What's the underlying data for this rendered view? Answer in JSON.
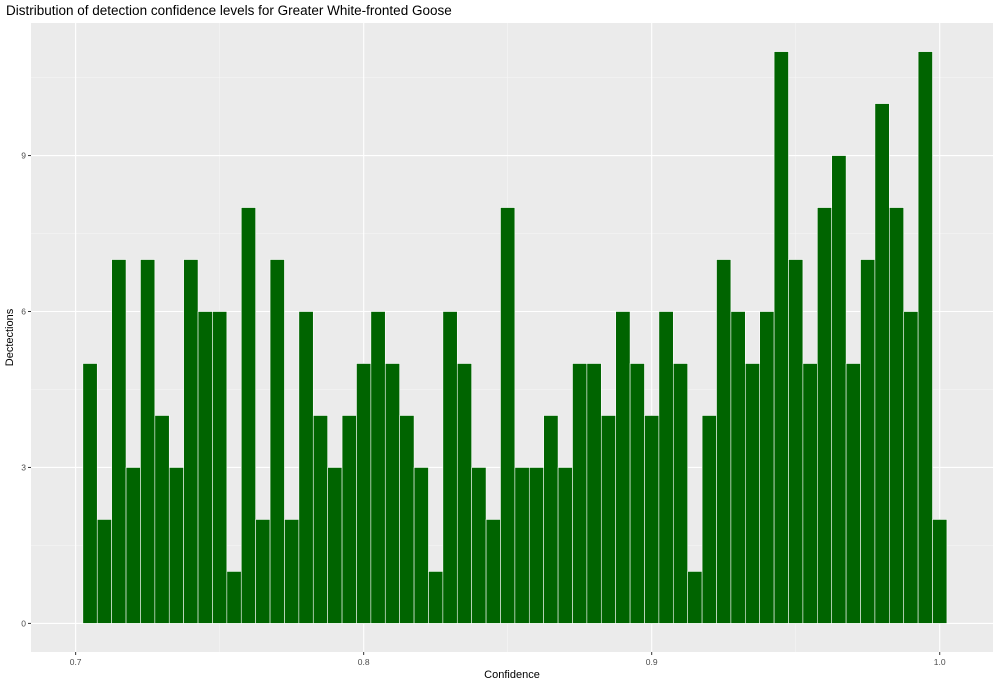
{
  "chart_data": {
    "type": "bar",
    "title": "Distribution of detection confidence levels for Greater White-fronted Goose",
    "xlabel": "Confidence",
    "ylabel": "Dectections",
    "xlim": [
      0.6845,
      1.0185
    ],
    "ylim": [
      -0.55,
      11.55
    ],
    "x_ticks": [
      "0.7",
      "0.8",
      "0.9",
      "1.0"
    ],
    "x_tick_values": [
      0.7,
      0.8,
      0.9,
      1.0
    ],
    "y_ticks": [
      "0",
      "3",
      "6",
      "9"
    ],
    "y_tick_values": [
      0,
      3,
      6,
      9
    ],
    "bin_start": 0.7025,
    "bin_width": 0.005,
    "values": [
      5,
      2,
      7,
      3,
      7,
      4,
      3,
      7,
      6,
      6,
      1,
      8,
      2,
      7,
      2,
      6,
      4,
      3,
      4,
      5,
      6,
      5,
      4,
      3,
      1,
      6,
      5,
      3,
      2,
      8,
      3,
      3,
      4,
      3,
      5,
      5,
      4,
      6,
      5,
      4,
      6,
      5,
      1,
      4,
      7,
      6,
      5,
      6,
      11,
      7,
      5,
      8,
      9,
      5,
      7,
      10,
      8,
      6,
      11,
      2
    ],
    "grid": true,
    "legend": "none",
    "colors": {
      "bar_fill": "#006400",
      "bar_outline": "#ffffff",
      "panel_background": "#ebebeb",
      "grid_major": "#ffffff",
      "grid_minor": "#f5f5f5"
    }
  }
}
